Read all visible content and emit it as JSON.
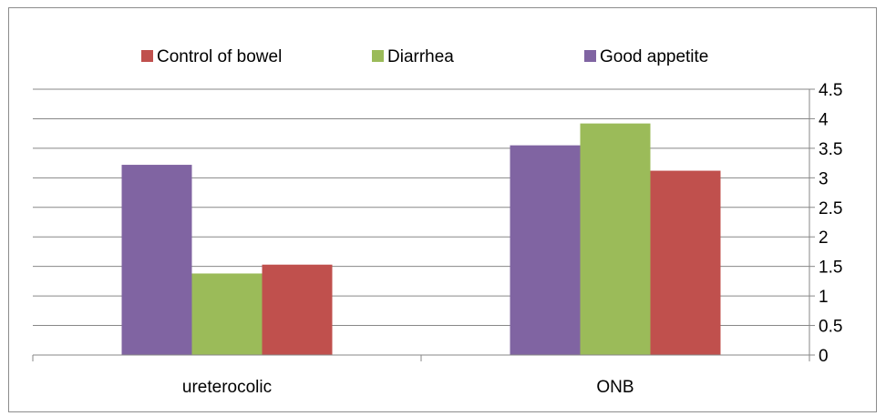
{
  "chart_data": {
    "type": "bar",
    "title": "",
    "xlabel": "",
    "ylabel": "",
    "categories": [
      "ureterocolic",
      "ONB"
    ],
    "series": [
      {
        "name": "Good appetite",
        "values": [
          3.22,
          3.55
        ],
        "color": "#8064a2"
      },
      {
        "name": "Diarrhea",
        "values": [
          1.38,
          3.92
        ],
        "color": "#9bbb59"
      },
      {
        "name": "Control of bowel",
        "values": [
          1.53,
          3.12
        ],
        "color": "#c0504d"
      }
    ],
    "legend_order": [
      "Control of bowel",
      "Diarrhea",
      "Good appetite"
    ],
    "ylim": [
      0,
      4.5
    ],
    "yticks": [
      "0",
      "0.5",
      "1",
      "1.5",
      "2",
      "2.5",
      "3",
      "3.5",
      "4",
      "4.5"
    ],
    "y_axis_side": "right",
    "grid": true,
    "legend_position": "top"
  }
}
